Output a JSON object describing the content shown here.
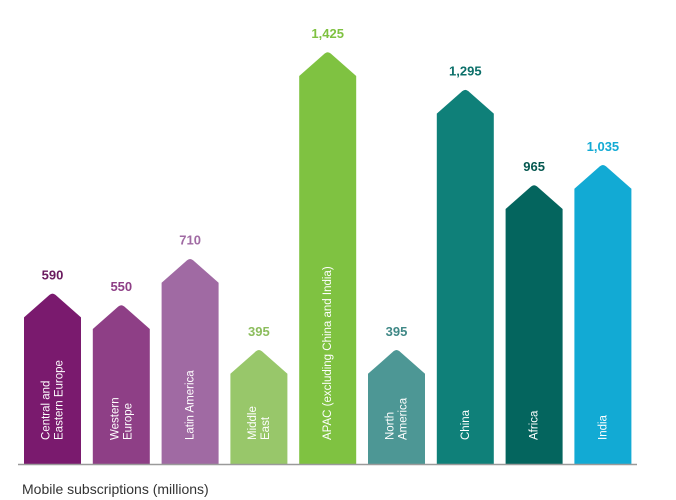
{
  "chart_data": {
    "type": "bar",
    "title": "",
    "xlabel": "",
    "ylabel": "Mobile subscriptions (millions)",
    "categories": [
      [
        "Central and",
        "Eastern Europe"
      ],
      [
        "Western",
        "Europe"
      ],
      [
        "Latin America"
      ],
      [
        "Middle",
        "East"
      ],
      [
        "APAC (excluding China and India)"
      ],
      [
        "North",
        "America"
      ],
      [
        "China"
      ],
      [
        "Africa"
      ],
      [
        "India"
      ]
    ],
    "values": [
      590,
      550,
      710,
      395,
      1425,
      395,
      1295,
      965,
      1035
    ],
    "value_labels": [
      "590",
      "550",
      "710",
      "395",
      "1,425",
      "395",
      "1,295",
      "965",
      "1,035"
    ],
    "colors": [
      "#7a1a6e",
      "#8e3f86",
      "#a06aa3",
      "#98c76a",
      "#7fc241",
      "#4d9795",
      "#0f8079",
      "#04655e",
      "#12aad4"
    ],
    "label_colors": [
      "#6a1a5e",
      "#8e3f86",
      "#a06aa3",
      "#8cbd5d",
      "#7fc241",
      "#3f8886",
      "#0b6f69",
      "#04574f",
      "#12aad4"
    ],
    "ylim": [
      0,
      1425
    ],
    "grid": false
  },
  "caption": "Mobile subscriptions (millions)"
}
